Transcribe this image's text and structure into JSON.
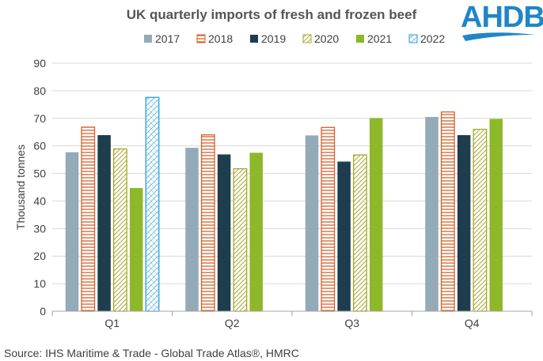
{
  "logo": {
    "text": "AHDB",
    "color": "#1f86c9"
  },
  "source": "Source: IHS Maritime & Trade - Global Trade Atlas®, HMRC",
  "chart_data": {
    "type": "bar",
    "title": "UK quarterly imports of fresh and frozen beef",
    "ylabel": "Thousand tonnes",
    "xlabel": "",
    "ylim": [
      0,
      90
    ],
    "yticks": [
      0,
      10,
      20,
      30,
      40,
      50,
      60,
      70,
      80,
      90
    ],
    "grid": true,
    "legend_position": "top",
    "categories": [
      "Q1",
      "Q2",
      "Q3",
      "Q4"
    ],
    "series": [
      {
        "name": "2017",
        "values": [
          57.7,
          59.3,
          63.8,
          70.5
        ],
        "color": "#93aab7",
        "pattern": "solid"
      },
      {
        "name": "2018",
        "values": [
          66.8,
          64.0,
          66.7,
          72.3
        ],
        "color": "#d4622b",
        "pattern": "horizontal"
      },
      {
        "name": "2019",
        "values": [
          63.9,
          56.9,
          54.3,
          63.9
        ],
        "color": "#1e3d4f",
        "pattern": "solid"
      },
      {
        "name": "2020",
        "values": [
          58.9,
          51.7,
          56.7,
          66.0
        ],
        "color": "#a5a82a",
        "pattern": "diagonal"
      },
      {
        "name": "2021",
        "values": [
          44.7,
          57.5,
          70.1,
          69.8
        ],
        "color": "#8cb82a",
        "pattern": "solid"
      },
      {
        "name": "2022",
        "values": [
          77.6,
          null,
          null,
          null
        ],
        "color": "#2a9fd8",
        "pattern": "crosshatch"
      }
    ]
  }
}
